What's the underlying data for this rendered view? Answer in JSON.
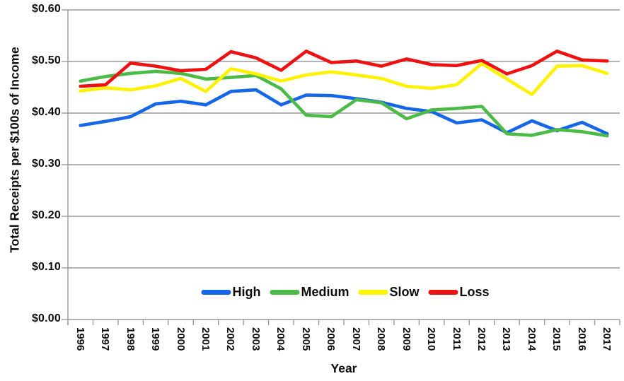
{
  "chart_data": {
    "type": "line",
    "title": "",
    "xlabel": "Year",
    "ylabel": "Total Receipts per $100s of Income",
    "x": [
      "1996",
      "1997",
      "1998",
      "1999",
      "2000",
      "2001",
      "2002",
      "2003",
      "2004",
      "2005",
      "2006",
      "2007",
      "2008",
      "2009",
      "2010",
      "2011",
      "2012",
      "2013",
      "2014",
      "2015",
      "2016",
      "2017"
    ],
    "series": [
      {
        "name": "High",
        "color": "#1666e8",
        "values": [
          0.376,
          0.384,
          0.393,
          0.418,
          0.423,
          0.416,
          0.442,
          0.445,
          0.416,
          0.435,
          0.434,
          0.428,
          0.421,
          0.409,
          0.403,
          0.381,
          0.387,
          0.362,
          0.385,
          0.366,
          0.382,
          0.36
        ]
      },
      {
        "name": "Medium",
        "color": "#4cba47",
        "values": [
          0.462,
          0.471,
          0.477,
          0.481,
          0.477,
          0.466,
          0.469,
          0.473,
          0.447,
          0.396,
          0.393,
          0.426,
          0.42,
          0.389,
          0.406,
          0.409,
          0.413,
          0.36,
          0.357,
          0.368,
          0.364,
          0.356
        ]
      },
      {
        "name": "Slow",
        "color": "#fff200",
        "values": [
          0.443,
          0.449,
          0.445,
          0.453,
          0.467,
          0.442,
          0.486,
          0.476,
          0.462,
          0.474,
          0.48,
          0.474,
          0.467,
          0.452,
          0.448,
          0.455,
          0.496,
          0.466,
          0.436,
          0.491,
          0.492,
          0.477
        ]
      },
      {
        "name": "Loss",
        "color": "#ee1111",
        "values": [
          0.452,
          0.455,
          0.497,
          0.491,
          0.482,
          0.485,
          0.519,
          0.507,
          0.483,
          0.52,
          0.498,
          0.501,
          0.491,
          0.505,
          0.494,
          0.492,
          0.502,
          0.476,
          0.492,
          0.52,
          0.503,
          0.501
        ]
      }
    ],
    "ylim": [
      0.0,
      0.6
    ],
    "ytick_step": 0.1,
    "ytick_labels": [
      "$0.00",
      "$0.10",
      "$0.20",
      "$0.30",
      "$0.40",
      "$0.50",
      "$0.60"
    ],
    "grid": true,
    "legend_position": "bottom-center-inside",
    "x_tick_rotation_deg": 90,
    "grid_color": "#9a9a9a",
    "text_color": "#0d0d0d"
  }
}
